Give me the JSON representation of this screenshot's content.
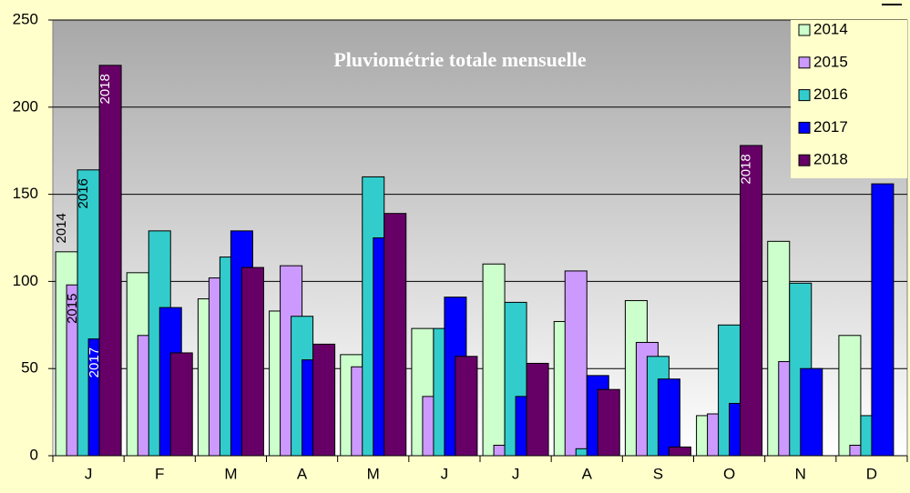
{
  "chart_data": {
    "type": "bar",
    "title": "Pluviométrie totale mensuelle",
    "categories": [
      "J",
      "F",
      "M",
      "A",
      "M",
      "J",
      "J",
      "A",
      "S",
      "O",
      "N",
      "D"
    ],
    "series": [
      {
        "name": "2014",
        "color": "#ccffcc",
        "values": [
          117,
          105,
          90,
          83,
          58,
          73,
          110,
          77,
          89,
          23,
          123,
          69
        ],
        "label_points": [
          0
        ]
      },
      {
        "name": "2015",
        "color": "#cc99ff",
        "values": [
          98,
          69,
          102,
          109,
          51,
          34,
          6,
          106,
          65,
          24,
          54,
          6
        ],
        "label_points": [
          0
        ]
      },
      {
        "name": "2016",
        "color": "#33cccc",
        "values": [
          164,
          129,
          114,
          80,
          160,
          73,
          88,
          4,
          57,
          75,
          99,
          23
        ],
        "label_points": [
          0
        ]
      },
      {
        "name": "2017",
        "color": "#0000ff",
        "values": [
          67,
          85,
          129,
          55,
          125,
          91,
          34,
          46,
          44,
          30,
          50,
          156
        ],
        "label_points": [
          0
        ]
      },
      {
        "name": "2018",
        "color": "#660066",
        "values": [
          224,
          59,
          108,
          64,
          139,
          57,
          53,
          38,
          5,
          178,
          null,
          null
        ],
        "label_points": [
          0,
          9
        ]
      }
    ],
    "ylim": [
      0,
      250
    ],
    "yticks": [
      0,
      50,
      100,
      150,
      200,
      250
    ],
    "grid": true,
    "legend": "top-right"
  }
}
